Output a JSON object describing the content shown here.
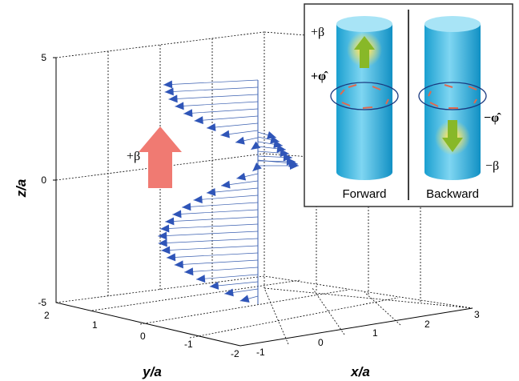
{
  "plot": {
    "z_label": "z/a",
    "y_label": "y/a",
    "x_label": "x/a",
    "z_ticks": [
      "5",
      "0",
      "-5"
    ],
    "y_ticks": [
      "2",
      "1",
      "0",
      "-1",
      "-2"
    ],
    "x_ticks": [
      "-1",
      "0",
      "1",
      "2",
      "3"
    ],
    "annotation": "+β"
  },
  "inset": {
    "forward": {
      "label": "Forward",
      "beta": "+β",
      "phi": "+φ̂"
    },
    "backward": {
      "label": "Backward",
      "beta": "−β",
      "phi": "−φ̂"
    }
  }
}
